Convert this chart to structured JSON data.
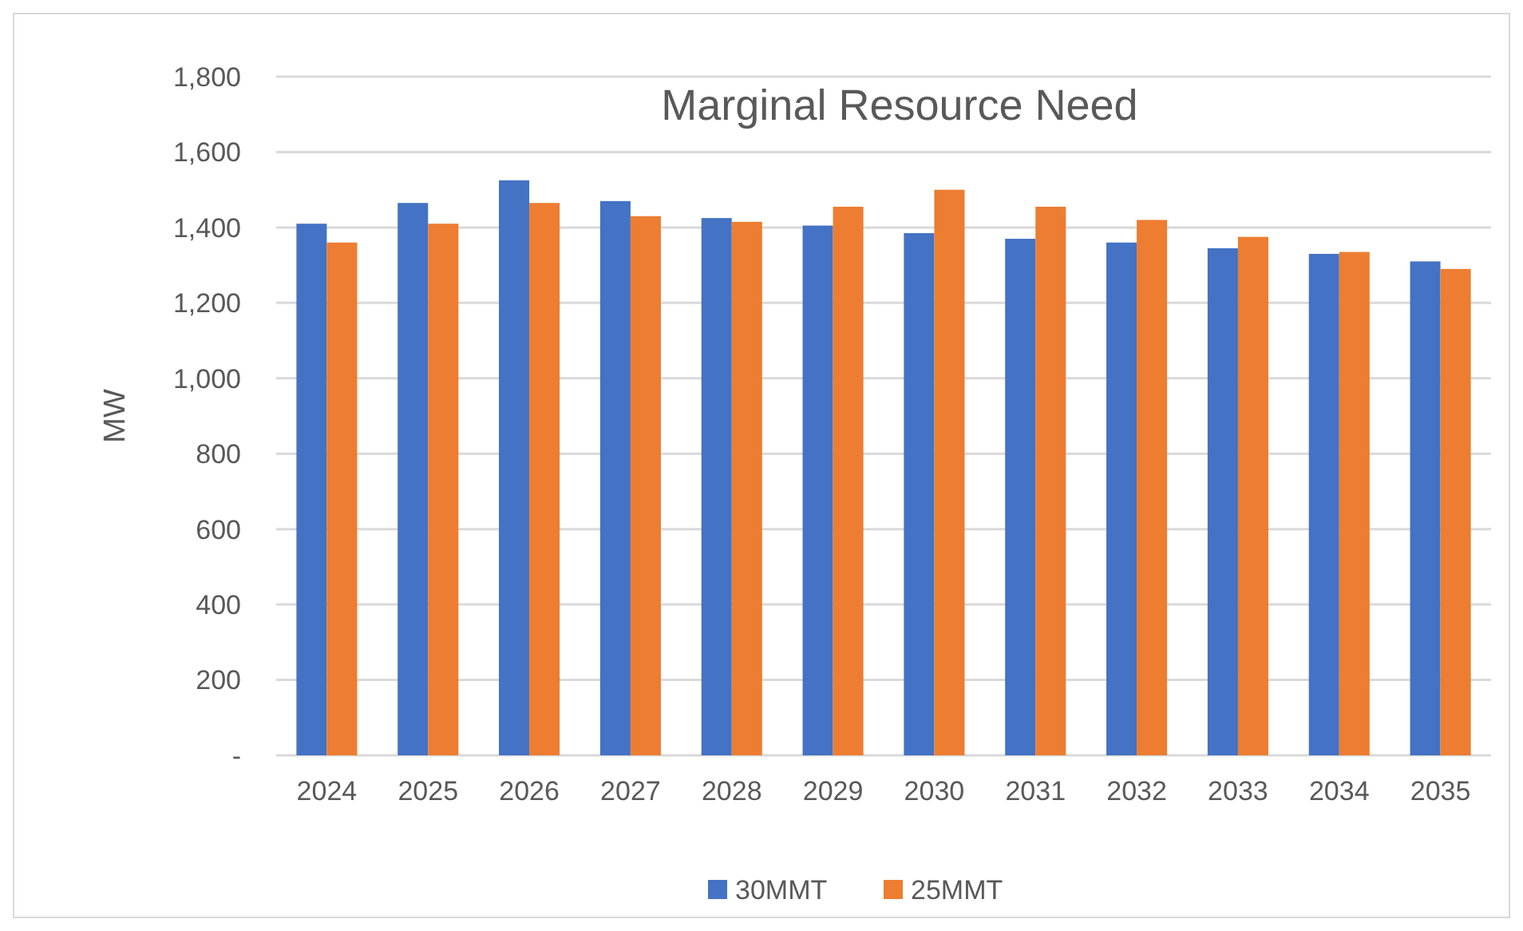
{
  "chart_data": {
    "type": "bar",
    "title": "Marginal Resource Need",
    "ylabel": "MW",
    "categories": [
      "2024",
      "2025",
      "2026",
      "2027",
      "2028",
      "2029",
      "2030",
      "2031",
      "2032",
      "2033",
      "2034",
      "2035"
    ],
    "series": [
      {
        "name": "30MMT",
        "color": "#4472c4",
        "values": [
          1410,
          1465,
          1525,
          1470,
          1425,
          1405,
          1385,
          1370,
          1360,
          1345,
          1330,
          1310
        ]
      },
      {
        "name": "25MMT",
        "color": "#ed7d31",
        "values": [
          1360,
          1410,
          1465,
          1430,
          1415,
          1455,
          1500,
          1455,
          1420,
          1375,
          1335,
          1290
        ]
      }
    ],
    "ylim": [
      0,
      1800
    ],
    "yticks": [
      {
        "value": 0,
        "label": "-"
      },
      {
        "value": 200,
        "label": "200"
      },
      {
        "value": 400,
        "label": "400"
      },
      {
        "value": 600,
        "label": "600"
      },
      {
        "value": 800,
        "label": "800"
      },
      {
        "value": 1000,
        "label": "1,000"
      },
      {
        "value": 1200,
        "label": "1,200"
      },
      {
        "value": 1400,
        "label": "1,400"
      },
      {
        "value": 1600,
        "label": "1,600"
      },
      {
        "value": 1800,
        "label": "1,800"
      }
    ],
    "grid": "y",
    "legend": "bottom"
  }
}
